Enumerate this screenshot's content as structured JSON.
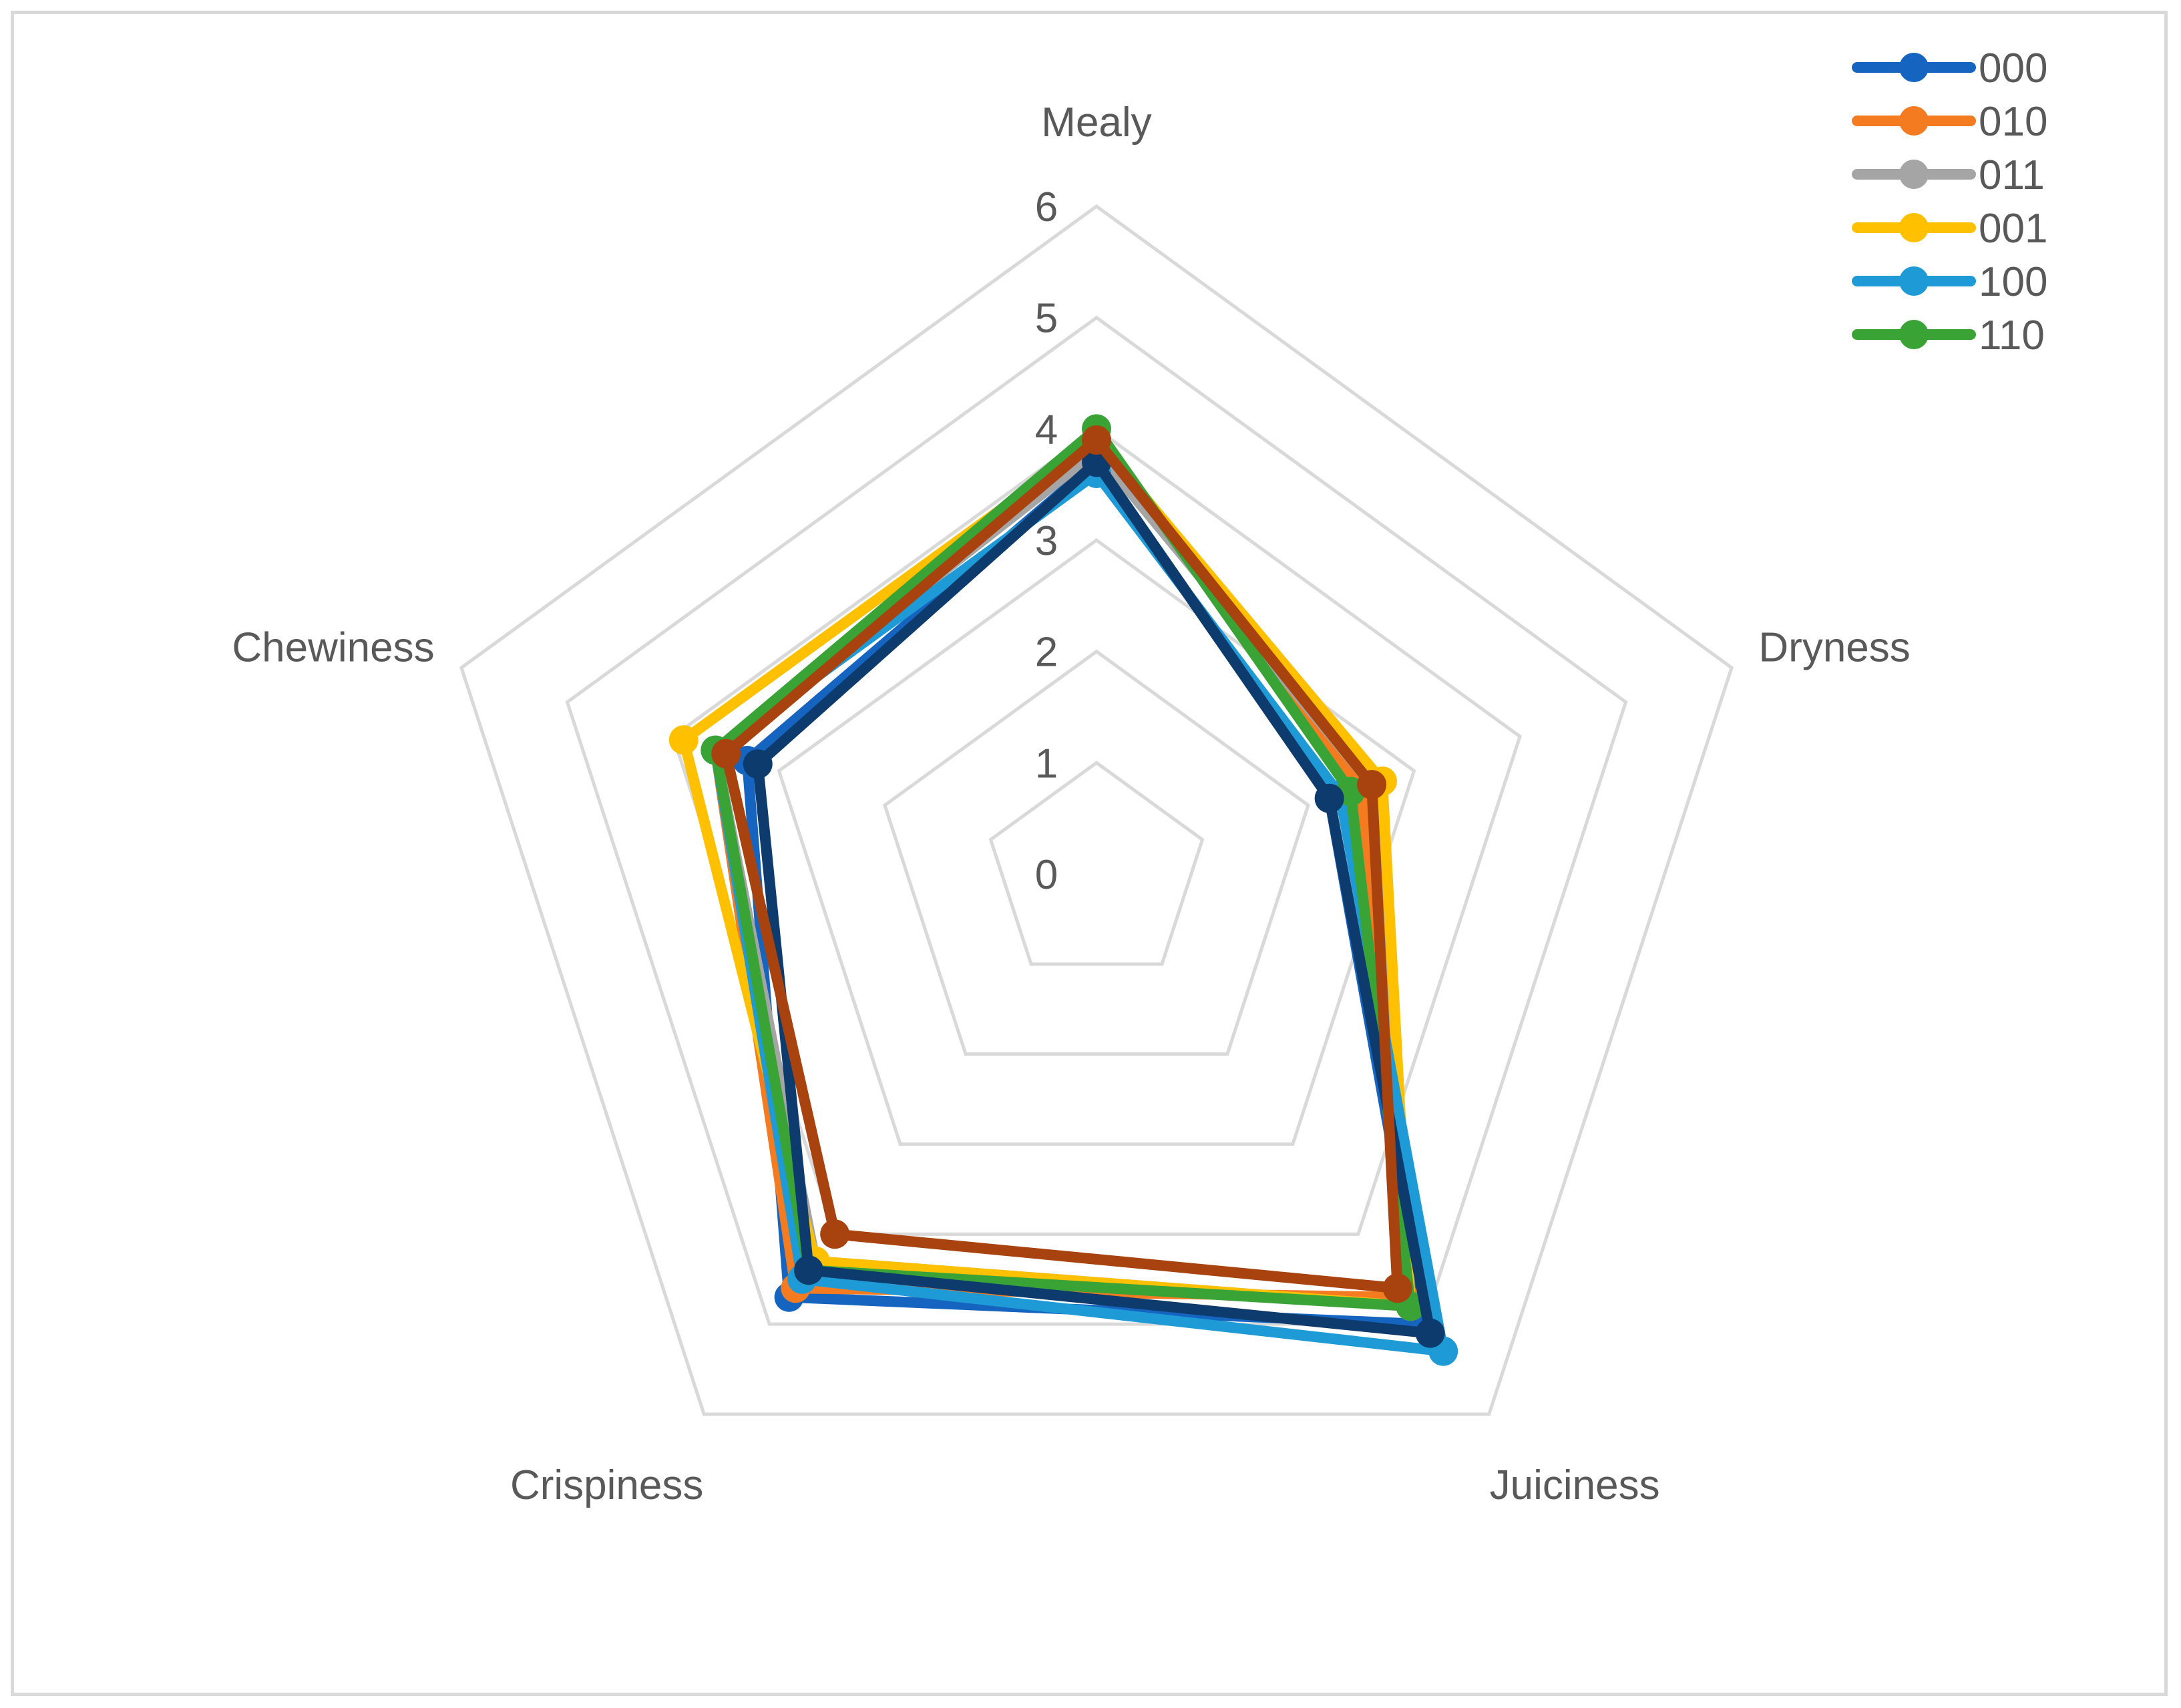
{
  "chart_data": {
    "type": "radar",
    "axes": [
      "Mealy",
      "Dryness",
      "Juiciness",
      "Crispiness",
      "Chewiness"
    ],
    "rlim": [
      0,
      6
    ],
    "ticks": [
      "0",
      "1",
      "2",
      "3",
      "4",
      "5",
      "6"
    ],
    "grid": true,
    "legend_position": "top-right",
    "series": [
      {
        "name": "000",
        "color": "#1565C0",
        "values": [
          3.7,
          2.2,
          5.0,
          4.7,
          3.3
        ]
      },
      {
        "name": "010",
        "color": "#F47B20",
        "values": [
          3.9,
          2.5,
          4.7,
          4.6,
          3.6
        ]
      },
      {
        "name": "011",
        "color": "#A5A5A5",
        "values": [
          3.8,
          2.6,
          4.8,
          4.3,
          3.6
        ]
      },
      {
        "name": "001",
        "color": "#FFC000",
        "values": [
          3.9,
          2.7,
          4.8,
          4.3,
          3.9
        ]
      },
      {
        "name": "100",
        "color": "#1E9BD7",
        "values": [
          3.6,
          2.3,
          5.3,
          4.5,
          3.6
        ]
      },
      {
        "name": "110",
        "color": "#3AA335",
        "values": [
          4.0,
          2.4,
          4.8,
          4.4,
          3.6
        ]
      },
      {
        "name": "",
        "color": "#0D3B6E",
        "values": [
          3.7,
          2.2,
          5.1,
          4.4,
          3.2
        ]
      },
      {
        "name": "",
        "color": "#A8420E",
        "values": [
          3.9,
          2.6,
          4.6,
          4.0,
          3.5
        ]
      }
    ]
  }
}
